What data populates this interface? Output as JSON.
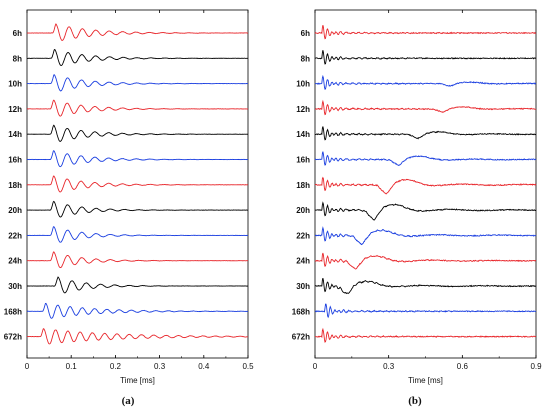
{
  "chart_data": [
    {
      "type": "line",
      "panel_label": "(a)",
      "xlabel": "Time [ms]",
      "xlim": [
        0,
        0.5
      ],
      "xticks": [
        "0",
        "0.1",
        "0.2",
        "0.3",
        "0.4",
        "0.5"
      ],
      "xtick_values": [
        0,
        0.1,
        0.2,
        0.3,
        0.4,
        0.5
      ],
      "grid": false,
      "series": [
        {
          "name": "6h",
          "color": "#e8262b",
          "onset": 0.058,
          "peak": 0.065,
          "freq": 33,
          "decay": 0.08,
          "amp": 1.0
        },
        {
          "name": "8h",
          "color": "#000000",
          "onset": 0.055,
          "peak": 0.062,
          "freq": 32,
          "decay": 0.07,
          "amp": 1.0
        },
        {
          "name": "10h",
          "color": "#1b3fe0",
          "onset": 0.054,
          "peak": 0.061,
          "freq": 32,
          "decay": 0.07,
          "amp": 1.0
        },
        {
          "name": "12h",
          "color": "#e8262b",
          "onset": 0.053,
          "peak": 0.06,
          "freq": 32,
          "decay": 0.07,
          "amp": 1.0
        },
        {
          "name": "14h",
          "color": "#000000",
          "onset": 0.053,
          "peak": 0.06,
          "freq": 32,
          "decay": 0.07,
          "amp": 1.0
        },
        {
          "name": "16h",
          "color": "#1b3fe0",
          "onset": 0.053,
          "peak": 0.06,
          "freq": 32,
          "decay": 0.07,
          "amp": 1.0
        },
        {
          "name": "18h",
          "color": "#e8262b",
          "onset": 0.053,
          "peak": 0.06,
          "freq": 32,
          "decay": 0.07,
          "amp": 1.0
        },
        {
          "name": "20h",
          "color": "#000000",
          "onset": 0.053,
          "peak": 0.06,
          "freq": 31,
          "decay": 0.06,
          "amp": 1.0
        },
        {
          "name": "22h",
          "color": "#1b3fe0",
          "onset": 0.053,
          "peak": 0.06,
          "freq": 31,
          "decay": 0.06,
          "amp": 1.0
        },
        {
          "name": "24h",
          "color": "#e8262b",
          "onset": 0.053,
          "peak": 0.06,
          "freq": 31,
          "decay": 0.06,
          "amp": 1.0
        },
        {
          "name": "30h",
          "color": "#000000",
          "onset": 0.062,
          "peak": 0.07,
          "freq": 31,
          "decay": 0.06,
          "amp": 1.0
        },
        {
          "name": "168h",
          "color": "#1b3fe0",
          "onset": 0.035,
          "peak": 0.042,
          "freq": 36,
          "decay": 0.1,
          "amp": 0.9
        },
        {
          "name": "672h",
          "color": "#e8262b",
          "onset": 0.03,
          "peak": 0.037,
          "freq": 36,
          "decay": 0.15,
          "amp": 0.9
        }
      ]
    },
    {
      "type": "line",
      "panel_label": "(b)",
      "xlabel": "Time [ms]",
      "xlim": [
        0,
        0.9
      ],
      "xticks": [
        "0",
        "0.3",
        "0.6",
        "0.9"
      ],
      "xtick_values": [
        0,
        0.3,
        0.6,
        0.9
      ],
      "grid": false,
      "series": [
        {
          "name": "6h",
          "color": "#e8262b",
          "onset": 0.028,
          "slow_t": 0.0,
          "slow_amp": 0.0
        },
        {
          "name": "8h",
          "color": "#000000",
          "onset": 0.028,
          "slow_t": 0.0,
          "slow_amp": 0.0
        },
        {
          "name": "10h",
          "color": "#1b3fe0",
          "onset": 0.028,
          "slow_t": 0.55,
          "slow_amp": 0.3
        },
        {
          "name": "12h",
          "color": "#e8262b",
          "onset": 0.028,
          "slow_t": 0.52,
          "slow_amp": 0.4
        },
        {
          "name": "14h",
          "color": "#000000",
          "onset": 0.028,
          "slow_t": 0.42,
          "slow_amp": 0.5
        },
        {
          "name": "16h",
          "color": "#1b3fe0",
          "onset": 0.028,
          "slow_t": 0.34,
          "slow_amp": 0.7
        },
        {
          "name": "18h",
          "color": "#e8262b",
          "onset": 0.028,
          "slow_t": 0.29,
          "slow_amp": 1.1
        },
        {
          "name": "20h",
          "color": "#000000",
          "onset": 0.028,
          "slow_t": 0.24,
          "slow_amp": 1.2
        },
        {
          "name": "22h",
          "color": "#1b3fe0",
          "onset": 0.028,
          "slow_t": 0.19,
          "slow_amp": 1.1
        },
        {
          "name": "24h",
          "color": "#e8262b",
          "onset": 0.028,
          "slow_t": 0.165,
          "slow_amp": 1.0
        },
        {
          "name": "30h",
          "color": "#000000",
          "onset": 0.028,
          "slow_t": 0.13,
          "slow_amp": 1.0
        },
        {
          "name": "168h",
          "color": "#1b3fe0",
          "onset": 0.04,
          "slow_t": 0.0,
          "slow_amp": 0.0
        },
        {
          "name": "672h",
          "color": "#e8262b",
          "onset": 0.028,
          "slow_t": 0.0,
          "slow_amp": 0.0
        }
      ]
    }
  ]
}
